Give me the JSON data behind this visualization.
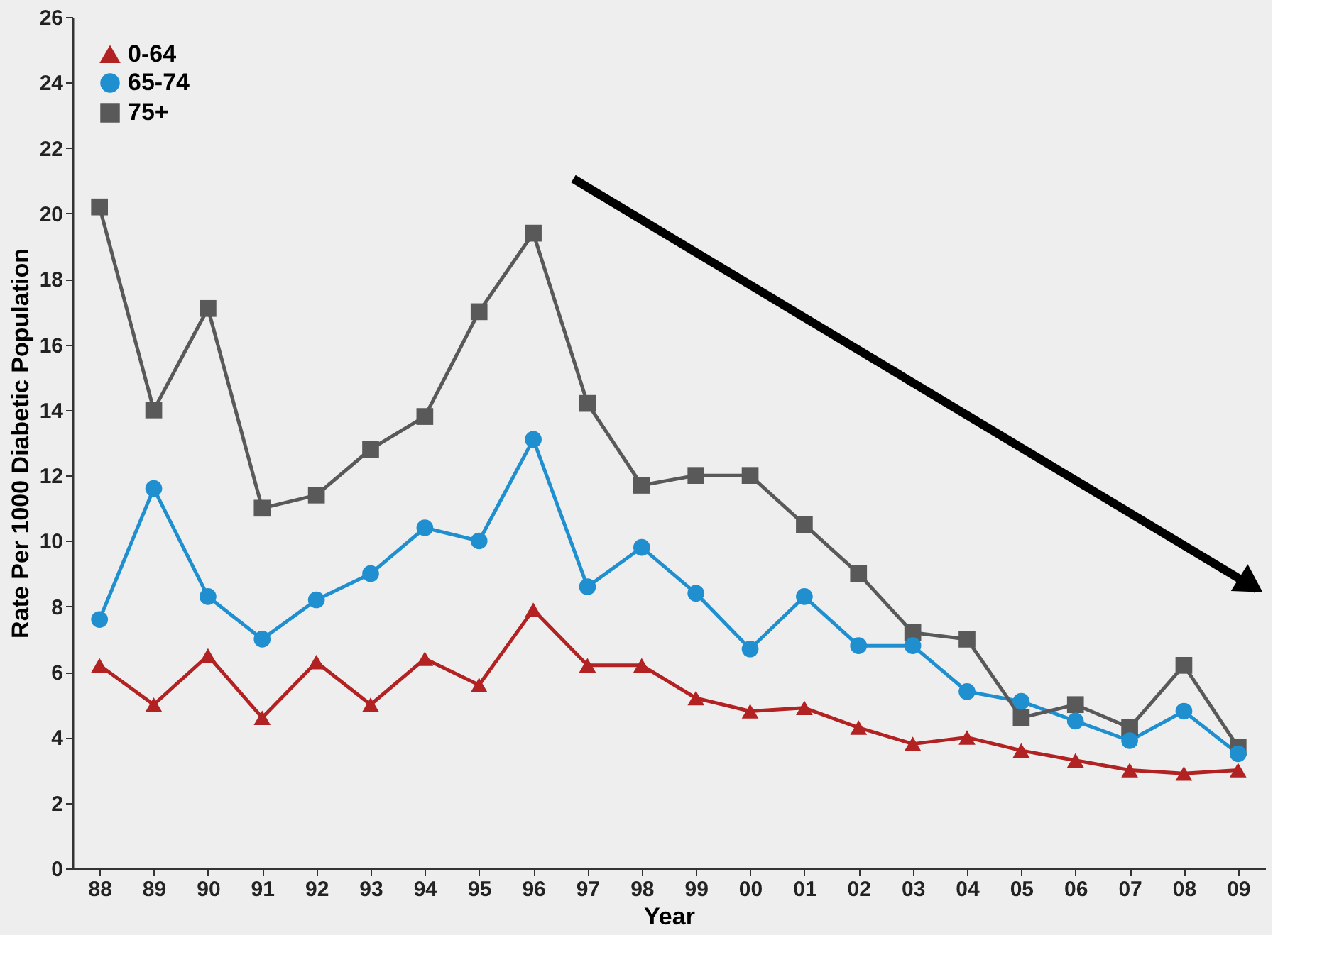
{
  "chart_data": {
    "type": "line",
    "xlabel": "Year",
    "ylabel": "Rate Per 1000 Diabetic Population",
    "categories": [
      "88",
      "89",
      "90",
      "91",
      "92",
      "93",
      "94",
      "95",
      "96",
      "97",
      "98",
      "99",
      "00",
      "01",
      "02",
      "03",
      "04",
      "05",
      "06",
      "07",
      "08",
      "09"
    ],
    "series": [
      {
        "name": "0-64",
        "color": "#b22222",
        "marker": "triangle",
        "values": [
          6.2,
          5.0,
          6.5,
          4.6,
          6.3,
          5.0,
          6.4,
          5.6,
          7.9,
          6.2,
          6.2,
          5.2,
          4.8,
          4.9,
          4.3,
          3.8,
          4.0,
          3.6,
          3.3,
          3.0,
          2.9,
          3.0
        ]
      },
      {
        "name": "65-74",
        "color": "#1f8fcf",
        "marker": "circle",
        "values": [
          7.6,
          11.6,
          8.3,
          7.0,
          8.2,
          9.0,
          10.4,
          10.0,
          13.1,
          8.6,
          9.8,
          8.4,
          6.7,
          8.3,
          6.8,
          6.8,
          5.4,
          5.1,
          4.5,
          3.9,
          4.8,
          3.5
        ]
      },
      {
        "name": "75+",
        "color": "#595959",
        "marker": "square",
        "values": [
          20.2,
          14.0,
          17.1,
          11.0,
          11.4,
          12.8,
          13.8,
          17.0,
          19.4,
          14.2,
          11.7,
          12.0,
          12.0,
          10.5,
          9.0,
          7.2,
          7.0,
          4.6,
          5.0,
          4.3,
          6.2,
          3.7
        ]
      }
    ],
    "ylim": [
      0,
      26
    ],
    "yticks": [
      0,
      2,
      4,
      6,
      8,
      10,
      12,
      14,
      16,
      18,
      20,
      22,
      24,
      26
    ],
    "grid": false,
    "legend": "top left",
    "line_style": "solid"
  }
}
